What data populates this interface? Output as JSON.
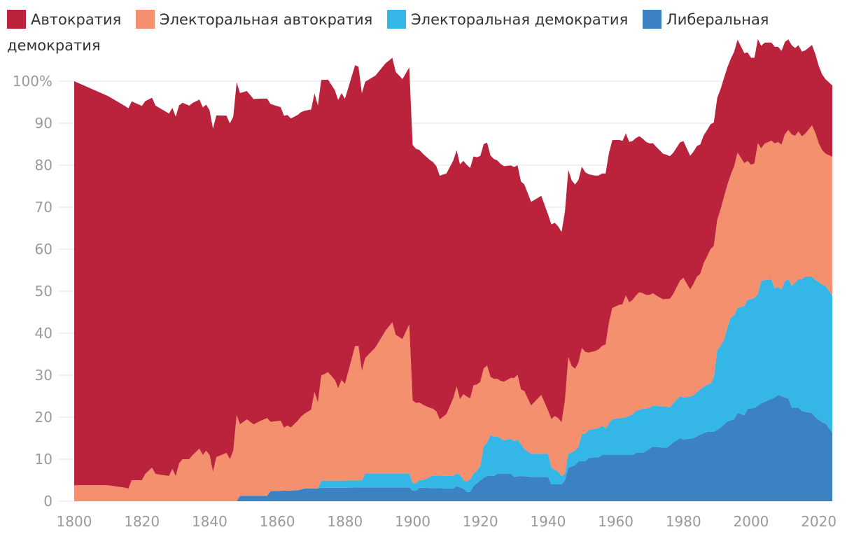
{
  "chart_data": {
    "type": "area",
    "stacked": true,
    "percent": true,
    "xlim": [
      1800,
      2024
    ],
    "ylim": [
      0,
      100
    ],
    "x_ticks": [
      "1800",
      "1820",
      "1840",
      "1860",
      "1880",
      "1900",
      "1920",
      "1940",
      "1960",
      "1980",
      "2000",
      "2020"
    ],
    "y_ticks": [
      "0",
      "10",
      "20",
      "30",
      "40",
      "50",
      "60",
      "70",
      "80",
      "90",
      "100%"
    ],
    "grid": "horizontal",
    "legend_position": "top-left",
    "series": [
      {
        "name": "Либеральная демократия",
        "color": "#3c82c3",
        "points": [
          [
            1800,
            0
          ],
          [
            1848,
            0
          ],
          [
            1849,
            1.3
          ],
          [
            1857,
            1.3
          ],
          [
            1858,
            2.4
          ],
          [
            1866,
            2.6
          ],
          [
            1868,
            3.0
          ],
          [
            1872,
            3.0
          ],
          [
            1873,
            3.2
          ],
          [
            1880,
            3.2
          ],
          [
            1886,
            3.3
          ],
          [
            1899,
            3.3
          ],
          [
            1900,
            2.5
          ],
          [
            1901,
            2.5
          ],
          [
            1902,
            3.2
          ],
          [
            1912,
            3.0
          ],
          [
            1913,
            3.6
          ],
          [
            1915,
            3.0
          ],
          [
            1916,
            2.2
          ],
          [
            1917,
            2.2
          ],
          [
            1918,
            3.6
          ],
          [
            1921,
            5.6
          ],
          [
            1922,
            6.0
          ],
          [
            1924,
            6.0
          ],
          [
            1925,
            6.5
          ],
          [
            1929,
            6.5
          ],
          [
            1930,
            5.8
          ],
          [
            1932,
            6.0
          ],
          [
            1935,
            5.8
          ],
          [
            1940,
            5.8
          ],
          [
            1941,
            4.0
          ],
          [
            1944,
            4.0
          ],
          [
            1945,
            5.0
          ],
          [
            1946,
            8.0
          ],
          [
            1948,
            8.6
          ],
          [
            1949,
            9.5
          ],
          [
            1951,
            9.5
          ],
          [
            1952,
            10.3
          ],
          [
            1955,
            10.5
          ],
          [
            1956,
            11.0
          ],
          [
            1965,
            11.0
          ],
          [
            1966,
            11.5
          ],
          [
            1968,
            11.5
          ],
          [
            1971,
            13.0
          ],
          [
            1975,
            12.7
          ],
          [
            1977,
            14.0
          ],
          [
            1979,
            15.0
          ],
          [
            1980,
            14.7
          ],
          [
            1983,
            15.0
          ],
          [
            1985,
            15.9
          ],
          [
            1987,
            16.5
          ],
          [
            1989,
            16.5
          ],
          [
            1991,
            17.5
          ],
          [
            1993,
            19.0
          ],
          [
            1995,
            19.5
          ],
          [
            1996,
            21.0
          ],
          [
            1998,
            20.5
          ],
          [
            1999,
            22.0
          ],
          [
            2001,
            22.2
          ],
          [
            2003,
            23.3
          ],
          [
            2005,
            24.0
          ],
          [
            2007,
            24.7
          ],
          [
            2008,
            25.3
          ],
          [
            2010,
            24.7
          ],
          [
            2011,
            24.5
          ],
          [
            2012,
            22.3
          ],
          [
            2014,
            22.3
          ],
          [
            2015,
            21.5
          ],
          [
            2016,
            21.3
          ],
          [
            2018,
            21.0
          ],
          [
            2019,
            20.0
          ],
          [
            2021,
            18.8
          ],
          [
            2022,
            18.5
          ],
          [
            2024,
            16.3
          ]
        ]
      },
      {
        "name": "Электоральная демократия",
        "color": "#34b6e6",
        "points": [
          [
            1800,
            0
          ],
          [
            1872,
            0
          ],
          [
            1873,
            1.7
          ],
          [
            1885,
            1.7
          ],
          [
            1886,
            3.3
          ],
          [
            1899,
            3.3
          ],
          [
            1900,
            1.8
          ],
          [
            1903,
            1.8
          ],
          [
            1904,
            2.2
          ],
          [
            1906,
            3.0
          ],
          [
            1914,
            3.0
          ],
          [
            1915,
            2.0
          ],
          [
            1917,
            3.0
          ],
          [
            1919,
            3.0
          ],
          [
            1920,
            3.5
          ],
          [
            1921,
            7.5
          ],
          [
            1922,
            8.0
          ],
          [
            1923,
            9.8
          ],
          [
            1927,
            8.0
          ],
          [
            1931,
            8.7
          ],
          [
            1933,
            6.5
          ],
          [
            1935,
            5.5
          ],
          [
            1940,
            5.5
          ],
          [
            1941,
            4.0
          ],
          [
            1943,
            3.0
          ],
          [
            1944,
            2.0
          ],
          [
            1945,
            1.5
          ],
          [
            1946,
            3.3
          ],
          [
            1949,
            3.5
          ],
          [
            1950,
            6.5
          ],
          [
            1956,
            7.0
          ],
          [
            1957,
            6.3
          ],
          [
            1958,
            7.5
          ],
          [
            1959,
            8.5
          ],
          [
            1963,
            9.0
          ],
          [
            1966,
            10.0
          ],
          [
            1968,
            10.5
          ],
          [
            1970,
            9.7
          ],
          [
            1975,
            9.8
          ],
          [
            1976,
            9.0
          ],
          [
            1979,
            10.0
          ],
          [
            1982,
            10.0
          ],
          [
            1986,
            11.0
          ],
          [
            1988,
            11.5
          ],
          [
            1989,
            13.0
          ],
          [
            1990,
            19.0
          ],
          [
            1991,
            19.5
          ],
          [
            1992,
            20.2
          ],
          [
            1994,
            24.5
          ],
          [
            1996,
            25.0
          ],
          [
            1998,
            26.0
          ],
          [
            2000,
            26.0
          ],
          [
            2002,
            26.5
          ],
          [
            2003,
            29.2
          ],
          [
            2006,
            28.5
          ],
          [
            2007,
            26.0
          ],
          [
            2009,
            25.4
          ],
          [
            2010,
            27.7
          ],
          [
            2013,
            29.7
          ],
          [
            2016,
            32.2
          ],
          [
            2020,
            32.8
          ],
          [
            2024,
            32.7
          ]
        ]
      },
      {
        "name": "Электоральная автократия",
        "color": "#f4906e",
        "points": [
          [
            1800,
            3.8
          ],
          [
            1810,
            3.8
          ],
          [
            1815,
            3.2
          ],
          [
            1816,
            3.0
          ],
          [
            1817,
            5.0
          ],
          [
            1820,
            5.0
          ],
          [
            1821,
            6.5
          ],
          [
            1823,
            8.0
          ],
          [
            1824,
            6.5
          ],
          [
            1828,
            6.0
          ],
          [
            1829,
            7.7
          ],
          [
            1830,
            6.0
          ],
          [
            1831,
            9.0
          ],
          [
            1832,
            10.0
          ],
          [
            1834,
            10.0
          ],
          [
            1835,
            11.0
          ],
          [
            1837,
            12.5
          ],
          [
            1838,
            11.0
          ],
          [
            1839,
            12.0
          ],
          [
            1840,
            11.0
          ],
          [
            1841,
            7.0
          ],
          [
            1842,
            10.5
          ],
          [
            1845,
            11.5
          ],
          [
            1846,
            10.0
          ],
          [
            1847,
            12.0
          ],
          [
            1848,
            20.5
          ],
          [
            1849,
            17.0
          ],
          [
            1851,
            18.2
          ],
          [
            1853,
            17.0
          ],
          [
            1855,
            17.8
          ],
          [
            1857,
            18.5
          ],
          [
            1858,
            16.5
          ],
          [
            1861,
            16.7
          ],
          [
            1862,
            15.0
          ],
          [
            1863,
            15.5
          ],
          [
            1864,
            15.0
          ],
          [
            1866,
            16.5
          ],
          [
            1867,
            17.3
          ],
          [
            1870,
            18.8
          ],
          [
            1871,
            23.0
          ],
          [
            1872,
            20.5
          ],
          [
            1873,
            25.0
          ],
          [
            1875,
            25.8
          ],
          [
            1877,
            24.0
          ],
          [
            1878,
            22.0
          ],
          [
            1879,
            24.0
          ],
          [
            1880,
            23.0
          ],
          [
            1883,
            32.0
          ],
          [
            1884,
            32.0
          ],
          [
            1885,
            26.0
          ],
          [
            1886,
            27.5
          ],
          [
            1889,
            30.0
          ],
          [
            1892,
            34.0
          ],
          [
            1894,
            36.0
          ],
          [
            1895,
            33.0
          ],
          [
            1897,
            32.0
          ],
          [
            1899,
            35.5
          ],
          [
            1900,
            19.7
          ],
          [
            1902,
            18.5
          ],
          [
            1903,
            18.0
          ],
          [
            1905,
            16.5
          ],
          [
            1907,
            15.3
          ],
          [
            1908,
            13.4
          ],
          [
            1910,
            14.7
          ],
          [
            1912,
            18.5
          ],
          [
            1913,
            20.7
          ],
          [
            1914,
            18.0
          ],
          [
            1915,
            20.5
          ],
          [
            1916,
            20.2
          ],
          [
            1917,
            19.3
          ],
          [
            1918,
            21.0
          ],
          [
            1920,
            20.0
          ],
          [
            1921,
            18.5
          ],
          [
            1922,
            18.3
          ],
          [
            1923,
            13.8
          ],
          [
            1926,
            13.7
          ],
          [
            1929,
            14.5
          ],
          [
            1931,
            15.5
          ],
          [
            1932,
            13.0
          ],
          [
            1933,
            13.8
          ],
          [
            1935,
            11.5
          ],
          [
            1938,
            14.0
          ],
          [
            1940,
            10.3
          ],
          [
            1942,
            12.8
          ],
          [
            1944,
            12.8
          ],
          [
            1945,
            17.5
          ],
          [
            1946,
            23.0
          ],
          [
            1947,
            20.5
          ],
          [
            1948,
            19.5
          ],
          [
            1950,
            20.5
          ],
          [
            1952,
            18.4
          ],
          [
            1954,
            18.5
          ],
          [
            1956,
            19.0
          ],
          [
            1957,
            20.0
          ],
          [
            1958,
            24.0
          ],
          [
            1959,
            26.5
          ],
          [
            1961,
            27.0
          ],
          [
            1962,
            27.0
          ],
          [
            1963,
            29.0
          ],
          [
            1964,
            27.0
          ],
          [
            1966,
            27.5
          ],
          [
            1967,
            28.0
          ],
          [
            1969,
            27.0
          ],
          [
            1971,
            26.8
          ],
          [
            1972,
            26.3
          ],
          [
            1974,
            25.5
          ],
          [
            1977,
            26.0
          ],
          [
            1979,
            27.5
          ],
          [
            1980,
            28.5
          ],
          [
            1982,
            25.5
          ],
          [
            1984,
            27.5
          ],
          [
            1985,
            27.5
          ],
          [
            1986,
            29.5
          ],
          [
            1987,
            30.5
          ],
          [
            1988,
            32.0
          ],
          [
            1989,
            31.3
          ],
          [
            1990,
            31.0
          ],
          [
            1992,
            34.0
          ],
          [
            1994,
            34.0
          ],
          [
            1996,
            37.0
          ],
          [
            1998,
            34.0
          ],
          [
            2000,
            32.0
          ],
          [
            2001,
            32.0
          ],
          [
            2002,
            36.0
          ],
          [
            2003,
            31.5
          ],
          [
            2004,
            32.5
          ],
          [
            2006,
            33.0
          ],
          [
            2007,
            34.5
          ],
          [
            2009,
            34.5
          ],
          [
            2010,
            35.0
          ],
          [
            2012,
            36.0
          ],
          [
            2013,
            35.0
          ],
          [
            2014,
            35.2
          ],
          [
            2015,
            34.0
          ],
          [
            2016,
            34.0
          ],
          [
            2018,
            36.0
          ],
          [
            2019,
            35.0
          ],
          [
            2020,
            33.0
          ],
          [
            2021,
            32.0
          ],
          [
            2022,
            31.5
          ],
          [
            2024,
            33.0
          ]
        ]
      },
      {
        "name": "Автократия",
        "color": "#bb233d",
        "points": [
          [
            1800,
            96.2
          ],
          [
            2024,
            17.0
          ]
        ]
      }
    ]
  }
}
